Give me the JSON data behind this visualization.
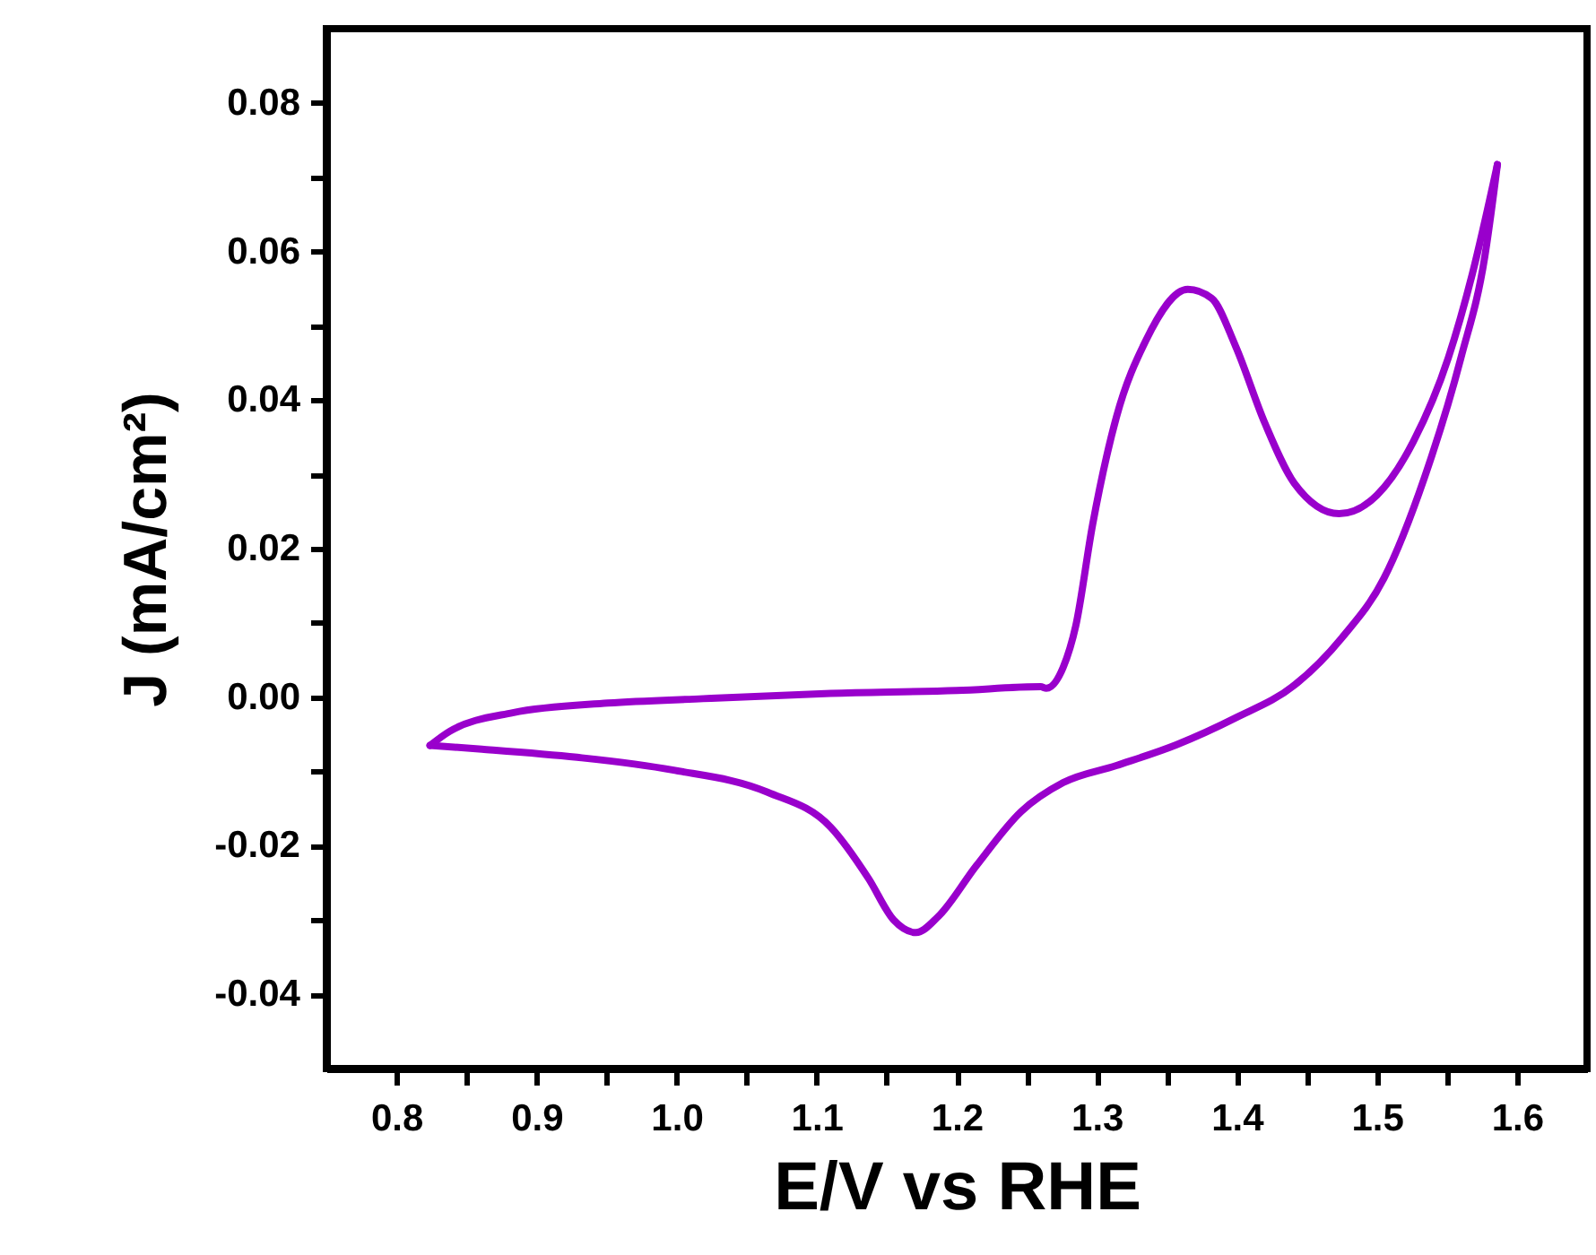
{
  "chart_data": {
    "type": "line",
    "xlabel": "E/V vs RHE",
    "ylabel": "J (mA/cm²)",
    "xlim": [
      0.75,
      1.65
    ],
    "ylim": [
      -0.05,
      0.09
    ],
    "xticks": [
      0.8,
      {
        "value": 0.85,
        "label": null
      },
      0.9,
      {
        "value": 0.95,
        "label": null
      },
      {
        "value": 1.0,
        "label": "1.0"
      },
      {
        "value": 1.05,
        "label": null
      },
      1.1,
      {
        "value": 1.15,
        "label": null
      },
      1.2,
      {
        "value": 1.25,
        "label": null
      },
      1.3,
      {
        "value": 1.35,
        "label": null
      },
      1.4,
      {
        "value": 1.45,
        "label": null
      },
      1.5,
      {
        "value": 1.55,
        "label": null
      },
      1.6
    ],
    "yticks": [
      {
        "value": -0.04,
        "label": "-0.04"
      },
      {
        "value": -0.03,
        "label": null
      },
      {
        "value": -0.02,
        "label": "-0.02"
      },
      {
        "value": -0.01,
        "label": null
      },
      {
        "value": 0,
        "label": "0.00"
      },
      {
        "value": 0.01,
        "label": null
      },
      {
        "value": 0.02,
        "label": "0.02"
      },
      {
        "value": 0.03,
        "label": null
      },
      {
        "value": 0.04,
        "label": "0.04"
      },
      {
        "value": 0.05,
        "label": null
      },
      {
        "value": 0.06,
        "label": "0.06"
      },
      {
        "value": 0.07,
        "label": null
      },
      {
        "value": 0.08,
        "label": "0.08"
      }
    ],
    "line_style": "solid",
    "series": [
      {
        "color": "#9900cc",
        "x": [
          0.824,
          0.838,
          0.883,
          0.951,
          1.019,
          1.11,
          1.2,
          1.26,
          1.264,
          1.276,
          1.285,
          1.297,
          1.314,
          1.335,
          1.365,
          1.382,
          1.399,
          1.42,
          1.441,
          1.473,
          1.5,
          1.526,
          1.551,
          1.568,
          1.586
        ],
        "values": [
          -0.0065,
          -0.0046,
          -0.0021,
          -0.0008,
          -0.0002,
          0.0005,
          0.0009,
          0.0014,
          0.0012,
          0.004,
          0.0096,
          0.0232,
          0.0377,
          0.048,
          0.0549,
          0.0537,
          0.0473,
          0.0369,
          0.0288,
          0.0247,
          0.0272,
          0.0344,
          0.0457,
          0.0569,
          0.0717
        ]
      },
      {
        "color": "#9900cc",
        "x": [
          0.824,
          0.861,
          0.929,
          0.997,
          1.065,
          1.11,
          1.137,
          1.155,
          1.171,
          1.187,
          1.214,
          1.246,
          1.276,
          1.314,
          1.357,
          1.399,
          1.441,
          1.475,
          1.505,
          1.534,
          1.56,
          1.577,
          1.586
        ],
        "values": [
          -0.0065,
          -0.007,
          -0.0081,
          -0.0098,
          -0.0128,
          -0.0175,
          -0.0244,
          -0.03,
          -0.0317,
          -0.0295,
          -0.0227,
          -0.0154,
          -0.0115,
          -0.0092,
          -0.0064,
          -0.0028,
          0.0016,
          0.008,
          0.016,
          0.0296,
          0.0457,
          0.0593,
          0.0717
        ]
      }
    ]
  }
}
